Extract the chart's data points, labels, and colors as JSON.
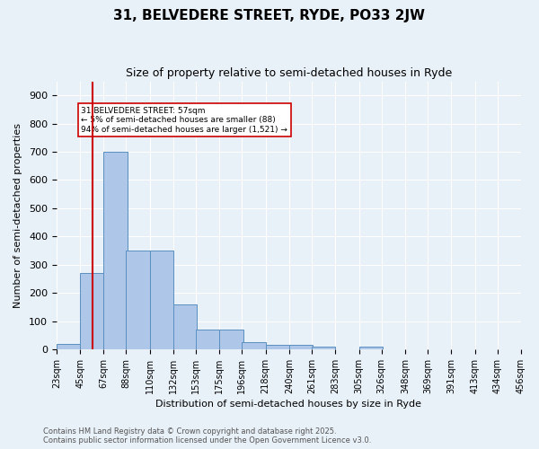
{
  "title": "31, BELVEDERE STREET, RYDE, PO33 2JW",
  "subtitle": "Size of property relative to semi-detached houses in Ryde",
  "xlabel": "Distribution of semi-detached houses by size in Ryde",
  "ylabel": "Number of semi-detached properties",
  "bin_labels": [
    "23sqm",
    "45sqm",
    "67sqm",
    "88sqm",
    "110sqm",
    "132sqm",
    "153sqm",
    "175sqm",
    "196sqm",
    "218sqm",
    "240sqm",
    "261sqm",
    "283sqm",
    "305sqm",
    "326sqm",
    "348sqm",
    "369sqm",
    "391sqm",
    "413sqm",
    "434sqm",
    "456sqm"
  ],
  "bin_edges": [
    23,
    45,
    67,
    88,
    110,
    132,
    153,
    175,
    196,
    218,
    240,
    261,
    283,
    305,
    326,
    348,
    369,
    391,
    413,
    434,
    456
  ],
  "bar_heights": [
    20,
    270,
    700,
    350,
    350,
    160,
    70,
    70,
    25,
    15,
    15,
    10,
    0,
    10,
    0,
    0,
    0,
    0,
    0,
    0
  ],
  "bar_color": "#aec6e8",
  "bar_edge_color": "#5a8fc0",
  "red_line_x": 57,
  "annotation_text": "31 BELVEDERE STREET: 57sqm\n← 5% of semi-detached houses are smaller (88)\n94% of semi-detached houses are larger (1,521) →",
  "annotation_box_color": "#ffffff",
  "annotation_border_color": "#cc0000",
  "background_color": "#e8f0f8",
  "grid_color": "#ffffff",
  "footer_text": "Contains HM Land Registry data © Crown copyright and database right 2025.\nContains public sector information licensed under the Open Government Licence v3.0.",
  "ylim": [
    0,
    950
  ],
  "yticks": [
    0,
    100,
    200,
    300,
    400,
    500,
    600,
    700,
    800,
    900
  ]
}
